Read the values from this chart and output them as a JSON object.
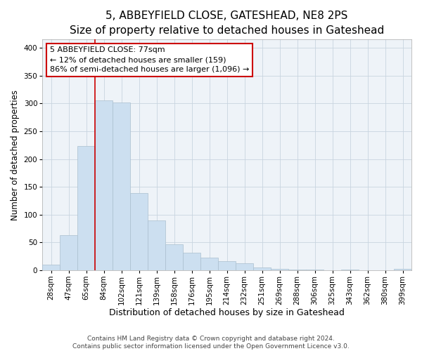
{
  "title": "5, ABBEYFIELD CLOSE, GATESHEAD, NE8 2PS",
  "subtitle": "Size of property relative to detached houses in Gateshead",
  "xlabel": "Distribution of detached houses by size in Gateshead",
  "ylabel": "Number of detached properties",
  "categories": [
    "28sqm",
    "47sqm",
    "65sqm",
    "84sqm",
    "102sqm",
    "121sqm",
    "139sqm",
    "158sqm",
    "176sqm",
    "195sqm",
    "214sqm",
    "232sqm",
    "251sqm",
    "269sqm",
    "288sqm",
    "306sqm",
    "325sqm",
    "343sqm",
    "362sqm",
    "380sqm",
    "399sqm"
  ],
  "values": [
    10,
    63,
    223,
    305,
    302,
    139,
    90,
    46,
    31,
    23,
    16,
    13,
    5,
    2,
    1,
    1,
    0,
    1,
    0,
    0,
    2
  ],
  "bar_color": "#ccdff0",
  "bar_edge_color": "#aabfcf",
  "vline_x_index": 3,
  "vline_color": "#cc0000",
  "annotation_title": "5 ABBEYFIELD CLOSE: 77sqm",
  "annotation_line1": "← 12% of detached houses are smaller (159)",
  "annotation_line2": "86% of semi-detached houses are larger (1,096) →",
  "annotation_box_facecolor": "#ffffff",
  "annotation_box_edgecolor": "#cc0000",
  "ylim": [
    0,
    415
  ],
  "yticks": [
    0,
    50,
    100,
    150,
    200,
    250,
    300,
    350,
    400
  ],
  "footer1": "Contains HM Land Registry data © Crown copyright and database right 2024.",
  "footer2": "Contains public sector information licensed under the Open Government Licence v3.0.",
  "title_fontsize": 11,
  "subtitle_fontsize": 9.5,
  "xlabel_fontsize": 9,
  "ylabel_fontsize": 8.5,
  "tick_fontsize": 7.5,
  "footer_fontsize": 6.5,
  "plot_bg_color": "#eef3f8",
  "grid_color": "#c8d4e0"
}
